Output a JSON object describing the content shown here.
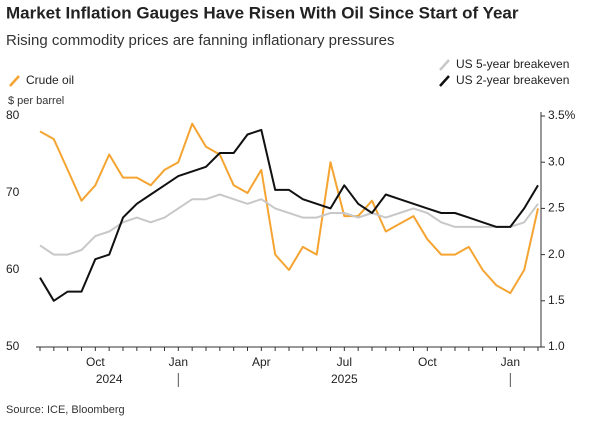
{
  "chart_data": {
    "type": "line",
    "title": "Market Inflation Gauges Have Risen With Oil Since Start of Year",
    "subtitle": "Rising commodity prices are fanning inflationary pressures",
    "ylabel": "$ per barrel",
    "source": "Source: ICE, Bloomberg",
    "categories": [
      null,
      null,
      null,
      null,
      "Oct",
      null,
      null,
      null,
      null,
      null,
      "Jan",
      null,
      null,
      null,
      null,
      null,
      "Apr",
      null,
      null,
      null,
      null,
      null,
      "Jul",
      null,
      null,
      null,
      null,
      null,
      "Oct",
      null,
      null,
      null,
      null,
      null,
      "Jan",
      null,
      null
    ],
    "x_group_labels": [
      "2024",
      "2025"
    ],
    "ylim": [
      50,
      80
    ],
    "yticks": [
      50,
      60,
      70,
      80
    ],
    "y2lim": [
      1,
      3.5
    ],
    "y2ticks": [
      {
        "value": 1,
        "label": "1.0"
      },
      1.5,
      {
        "value": 2,
        "label": "2.0"
      },
      2.5,
      {
        "value": 3,
        "label": "3.0"
      },
      {
        "value": 3.5,
        "label": "3.5%"
      }
    ],
    "series": [
      {
        "name": "Crude oil",
        "color": "#f5a431",
        "values": [
          78,
          77,
          73,
          69,
          71,
          75,
          72,
          72,
          71,
          73,
          74,
          79,
          76,
          75,
          71,
          70,
          73,
          62,
          60,
          63,
          62,
          74,
          67,
          67,
          69,
          65,
          66,
          67,
          64,
          62,
          62,
          63,
          60,
          58,
          57,
          60,
          68
        ]
      },
      {
        "name": "US 5-year breakeven",
        "color": "#c8c8c8",
        "axis": "y2",
        "values": [
          2.1,
          2.0,
          2.0,
          2.05,
          2.2,
          2.25,
          2.35,
          2.4,
          2.35,
          2.4,
          2.5,
          2.6,
          2.6,
          2.65,
          2.6,
          2.55,
          2.6,
          2.5,
          2.45,
          2.4,
          2.4,
          2.45,
          2.45,
          2.4,
          2.45,
          2.4,
          2.45,
          2.5,
          2.45,
          2.35,
          2.3,
          2.3,
          2.3,
          2.3,
          2.3,
          2.35,
          2.55
        ]
      },
      {
        "name": "US 2-year breakeven",
        "color": "#111111",
        "axis": "y2",
        "values": [
          1.75,
          1.5,
          1.6,
          1.6,
          1.95,
          2.0,
          2.4,
          2.55,
          2.65,
          2.75,
          2.85,
          2.9,
          2.95,
          3.1,
          3.1,
          3.3,
          3.35,
          2.7,
          2.7,
          2.6,
          2.55,
          2.5,
          2.75,
          2.55,
          2.45,
          2.65,
          2.6,
          2.55,
          2.5,
          2.45,
          2.45,
          2.4,
          2.35,
          2.3,
          2.3,
          2.5,
          2.75
        ]
      }
    ]
  }
}
